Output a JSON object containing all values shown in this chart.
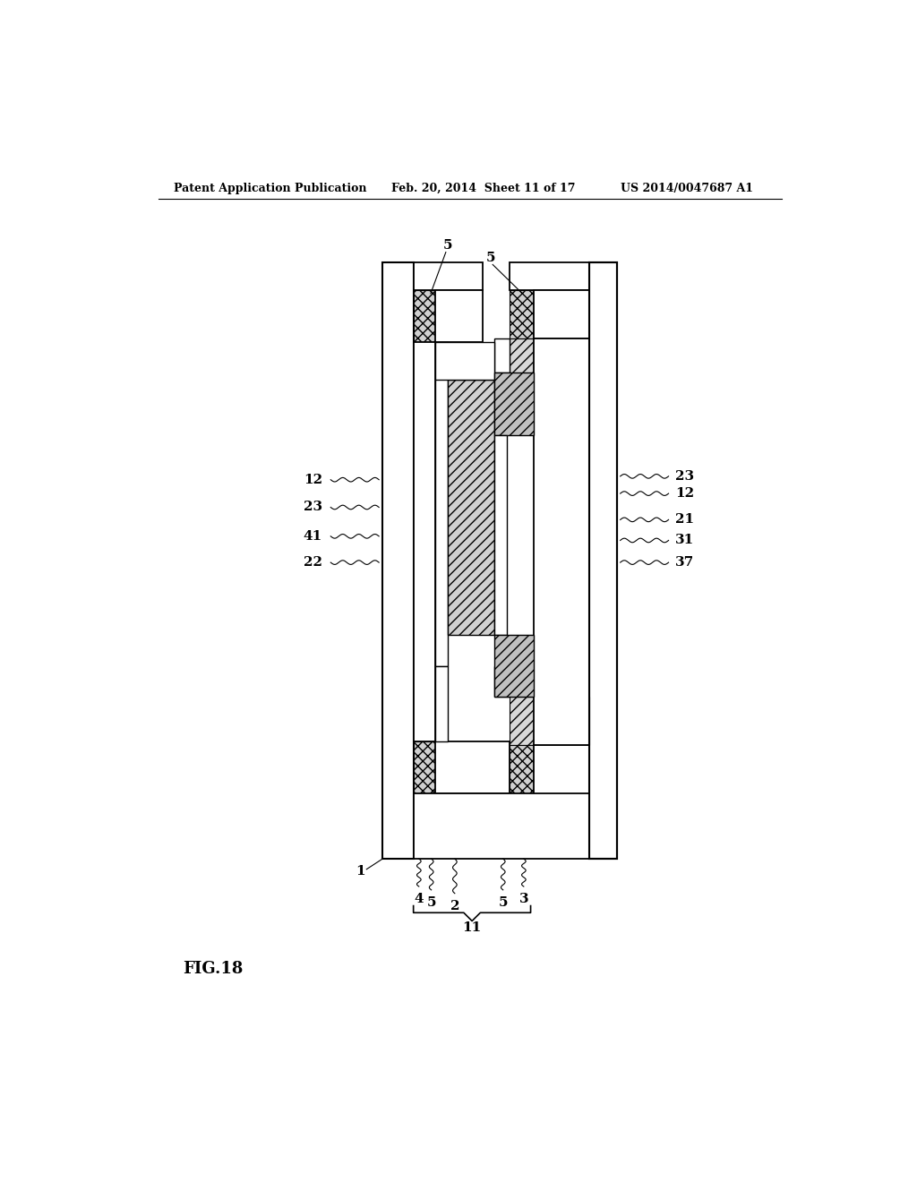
{
  "bg_color": "#ffffff",
  "line_color": "#000000",
  "header_left": "Patent Application Publication",
  "header_mid": "Feb. 20, 2014  Sheet 11 of 17",
  "header_right": "US 2014/0047687 A1",
  "fig_label": "FIG.18"
}
